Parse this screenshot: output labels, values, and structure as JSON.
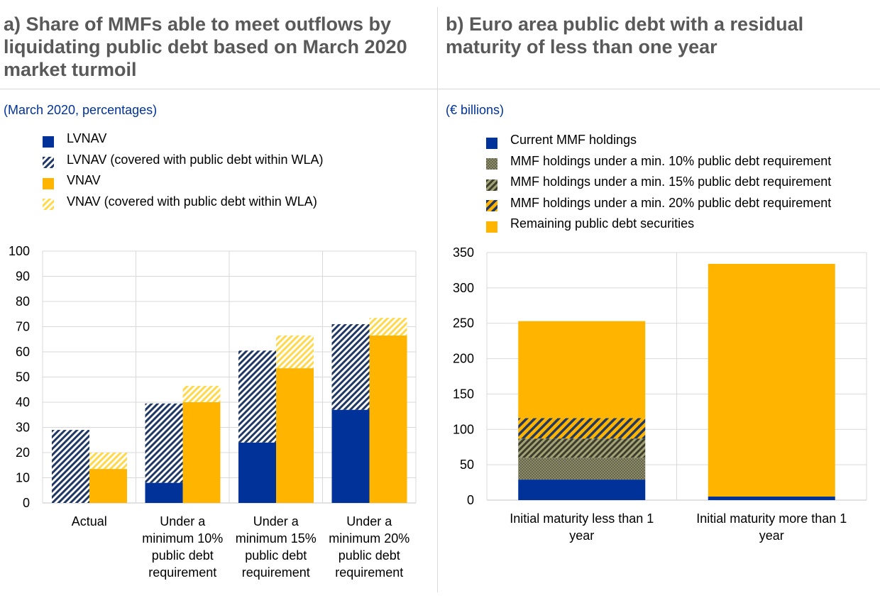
{
  "colors": {
    "blue": "#003299",
    "yellow": "#ffb400",
    "hatch_yellow": "#ffd94d",
    "olive": "#7f7f5f",
    "grid": "#d9d9d9",
    "title": "#595959",
    "unit": "#003299"
  },
  "panel_a": {
    "title": "a) Share of MMFs able to meet outflows by liquidating public debt based on March 2020 market turmoil",
    "unit": "(March 2020, percentages)",
    "legend": [
      {
        "label": "LVNAV",
        "swatch": "solid-blue"
      },
      {
        "label": "LVNAV (covered with public debt within WLA)",
        "swatch": "hatch-blue"
      },
      {
        "label": "VNAV",
        "swatch": "solid-yellow"
      },
      {
        "label": "VNAV (covered with public debt within WLA)",
        "swatch": "hatch-yellow"
      }
    ]
  },
  "panel_b": {
    "title": "b) Euro area public debt with a residual maturity of less than one year",
    "unit": "(€ billions)",
    "legend": [
      {
        "label": "Current MMF holdings",
        "swatch": "solid-blue"
      },
      {
        "label": "MMF holdings under a min. 10% public debt requirement",
        "swatch": "dot-olive"
      },
      {
        "label": "MMF holdings under a min. 15% public debt requirement",
        "swatch": "hatch-olive"
      },
      {
        "label": "MMF holdings under a min. 20% public debt requirement",
        "swatch": "hatch-orange"
      },
      {
        "label": "Remaining public debt securities",
        "swatch": "solid-yellow"
      }
    ]
  },
  "chart_data": [
    {
      "type": "bar",
      "stacked": true,
      "grouped": true,
      "categories": [
        [
          "Actual"
        ],
        [
          "Under a",
          "minimum 10%",
          "public debt",
          "requirement"
        ],
        [
          "Under a",
          "minimum 15%",
          "public debt",
          "requirement"
        ],
        [
          "Under a",
          "minimum 20%",
          "public debt",
          "requirement"
        ]
      ],
      "ylim": [
        0,
        100
      ],
      "yticks": [
        0,
        10,
        20,
        30,
        40,
        50,
        60,
        70,
        80,
        90,
        100
      ],
      "grid": true,
      "series": [
        {
          "name": "LVNAV",
          "group": "LVNAV",
          "values": [
            0,
            8,
            24,
            37
          ]
        },
        {
          "name": "LVNAV (covered with public debt within WLA)",
          "group": "LVNAV",
          "values": [
            29,
            31.5,
            36.5,
            34
          ]
        },
        {
          "name": "VNAV",
          "group": "VNAV",
          "values": [
            13.5,
            40,
            53.5,
            66.5
          ]
        },
        {
          "name": "VNAV (covered with public debt within WLA)",
          "group": "VNAV",
          "values": [
            6.5,
            6.5,
            13,
            7
          ]
        }
      ]
    },
    {
      "type": "bar",
      "stacked": true,
      "categories": [
        [
          "Initial maturity less than 1",
          "year"
        ],
        [
          "Initial maturity more than 1",
          "year"
        ]
      ],
      "ylim": [
        0,
        350
      ],
      "yticks": [
        0,
        50,
        100,
        150,
        200,
        250,
        300,
        350
      ],
      "grid": true,
      "series": [
        {
          "name": "Current MMF holdings",
          "values": [
            29,
            5
          ]
        },
        {
          "name": "MMF holdings under a min. 10% public debt requirement",
          "values": [
            31,
            0
          ]
        },
        {
          "name": "MMF holdings under a min. 15% public debt requirement",
          "values": [
            27,
            0
          ]
        },
        {
          "name": "MMF holdings under a min. 20% public debt requirement",
          "values": [
            29,
            0
          ]
        },
        {
          "name": "Remaining public debt securities",
          "values": [
            137,
            329
          ]
        }
      ]
    }
  ]
}
